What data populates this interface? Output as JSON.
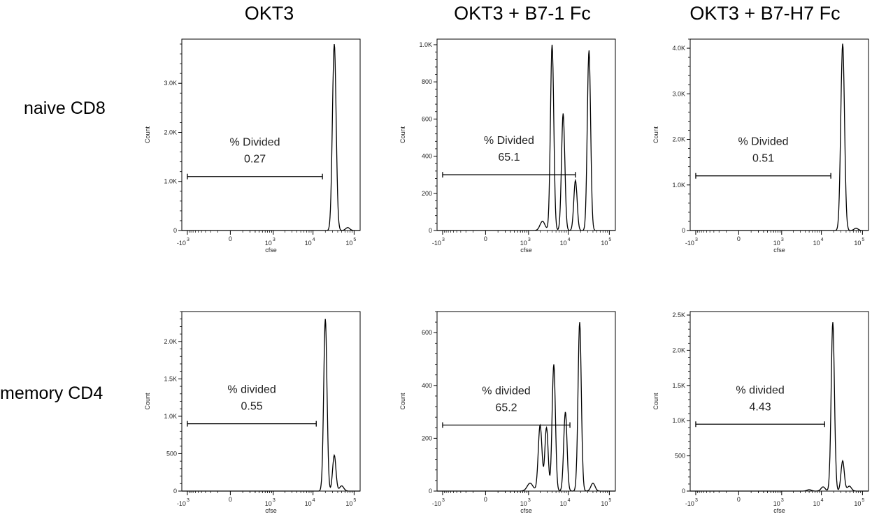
{
  "column_titles": [
    "OKT3",
    "OKT3 + B7-1 Fc",
    "OKT3 + B7-H7 Fc"
  ],
  "row_labels": [
    "naive CD8",
    "memory CD4"
  ],
  "chart_data": [
    {
      "type": "line",
      "row": "naive CD8",
      "column": "OKT3",
      "xlabel": "cfse",
      "ylabel": "Count",
      "xscale": "biexponential",
      "xticks": [
        "-10^3",
        "0",
        "10^3",
        "10^4",
        "10^5"
      ],
      "ylim": [
        0,
        3900
      ],
      "yticks": [
        0,
        1000,
        2000,
        3000
      ],
      "ytick_labels": [
        "0",
        "1.0K",
        "2.0K",
        "3.0K"
      ],
      "gate": {
        "label": "% Divided",
        "value": "0.27",
        "x_from": -1000,
        "x_to": 17000,
        "y": 1100
      },
      "peaks": [
        {
          "x": 33000,
          "y": 3800,
          "w": 0.045
        },
        {
          "x": 70000,
          "y": 60,
          "w": 0.05
        }
      ],
      "base": 0
    },
    {
      "type": "line",
      "row": "naive CD8",
      "column": "OKT3 + B7-1 Fc",
      "xlabel": "cfse",
      "ylabel": "Count",
      "xscale": "biexponential",
      "xticks": [
        "-10^3",
        "0",
        "10^3",
        "10^4",
        "10^5"
      ],
      "ylim": [
        0,
        1030
      ],
      "yticks": [
        0,
        200,
        400,
        600,
        800,
        1000
      ],
      "ytick_labels": [
        "0",
        "200",
        "400",
        "600",
        "800",
        "1.0K"
      ],
      "gate": {
        "label": "% Divided",
        "value": "65.1",
        "x_from": -1000,
        "x_to": 15000,
        "y": 300
      },
      "peaks": [
        {
          "x": 2300,
          "y": 50,
          "w": 0.06
        },
        {
          "x": 4000,
          "y": 1000,
          "w": 0.04
        },
        {
          "x": 7500,
          "y": 630,
          "w": 0.04
        },
        {
          "x": 15000,
          "y": 270,
          "w": 0.04
        },
        {
          "x": 32000,
          "y": 970,
          "w": 0.04
        }
      ],
      "base": 0
    },
    {
      "type": "line",
      "row": "naive CD8",
      "column": "OKT3 + B7-H7 Fc",
      "xlabel": "cfse",
      "ylabel": "Count",
      "xscale": "biexponential",
      "xticks": [
        "-10^3",
        "0",
        "10^3",
        "10^4",
        "10^5"
      ],
      "ylim": [
        0,
        4200
      ],
      "yticks": [
        0,
        1000,
        2000,
        3000,
        4000
      ],
      "ytick_labels": [
        "0",
        "1.0K",
        "2.0K",
        "3.0K",
        "4.0K"
      ],
      "gate": {
        "label": "% Divided",
        "value": "0.51",
        "x_from": -1000,
        "x_to": 17000,
        "y": 1200
      },
      "peaks": [
        {
          "x": 33000,
          "y": 4100,
          "w": 0.045
        },
        {
          "x": 70000,
          "y": 50,
          "w": 0.05
        }
      ],
      "base": 0
    },
    {
      "type": "line",
      "row": "memory CD4",
      "column": "OKT3",
      "xlabel": "cfse",
      "ylabel": "Count",
      "xscale": "biexponential",
      "xticks": [
        "-10^3",
        "0",
        "10^3",
        "10^4",
        "10^5"
      ],
      "ylim": [
        0,
        2400
      ],
      "yticks": [
        0,
        500,
        1000,
        1500,
        2000
      ],
      "ytick_labels": [
        "0",
        "500",
        "1.0K",
        "1.5K",
        "2.0K"
      ],
      "gate": {
        "label": "% divided",
        "value": "0.55",
        "x_from": -1000,
        "x_to": 12000,
        "y": 900
      },
      "peaks": [
        {
          "x": 20000,
          "y": 2300,
          "w": 0.04
        },
        {
          "x": 33000,
          "y": 480,
          "w": 0.04
        },
        {
          "x": 50000,
          "y": 70,
          "w": 0.05
        }
      ],
      "base": 0
    },
    {
      "type": "line",
      "row": "memory CD4",
      "column": "OKT3 + B7-1 Fc",
      "xlabel": "cfse",
      "ylabel": "Count",
      "xscale": "biexponential",
      "xticks": [
        "-10^3",
        "0",
        "10^3",
        "10^4",
        "10^5"
      ],
      "ylim": [
        0,
        680
      ],
      "yticks": [
        0,
        200,
        400,
        600
      ],
      "ytick_labels": [
        "0",
        "200",
        "400",
        "600"
      ],
      "gate": {
        "label": "% divided",
        "value": "65.2",
        "x_from": -1000,
        "x_to": 11000,
        "y": 250
      },
      "peaks": [
        {
          "x": 1100,
          "y": 30,
          "w": 0.07
        },
        {
          "x": 2000,
          "y": 250,
          "w": 0.045
        },
        {
          "x": 2900,
          "y": 240,
          "w": 0.04
        },
        {
          "x": 4400,
          "y": 480,
          "w": 0.04
        },
        {
          "x": 8500,
          "y": 300,
          "w": 0.04
        },
        {
          "x": 19000,
          "y": 640,
          "w": 0.04
        },
        {
          "x": 40000,
          "y": 30,
          "w": 0.05
        }
      ],
      "base": 0
    },
    {
      "type": "line",
      "row": "memory CD4",
      "column": "OKT3 + B7-H7 Fc",
      "xlabel": "cfse",
      "ylabel": "Count",
      "xscale": "biexponential",
      "xticks": [
        "-10^3",
        "0",
        "10^3",
        "10^4",
        "10^5"
      ],
      "ylim": [
        0,
        2550
      ],
      "yticks": [
        0,
        500,
        1000,
        1500,
        2000,
        2500
      ],
      "ytick_labels": [
        "0",
        "500",
        "1.0K",
        "1.5K",
        "2.0K",
        "2.5K"
      ],
      "gate": {
        "label": "% divided",
        "value": "4.43",
        "x_from": -1000,
        "x_to": 12000,
        "y": 950
      },
      "peaks": [
        {
          "x": 5000,
          "y": 20,
          "w": 0.05
        },
        {
          "x": 11000,
          "y": 60,
          "w": 0.05
        },
        {
          "x": 19000,
          "y": 2400,
          "w": 0.04
        },
        {
          "x": 33000,
          "y": 430,
          "w": 0.04
        },
        {
          "x": 48000,
          "y": 70,
          "w": 0.05
        }
      ],
      "base": 0
    }
  ]
}
